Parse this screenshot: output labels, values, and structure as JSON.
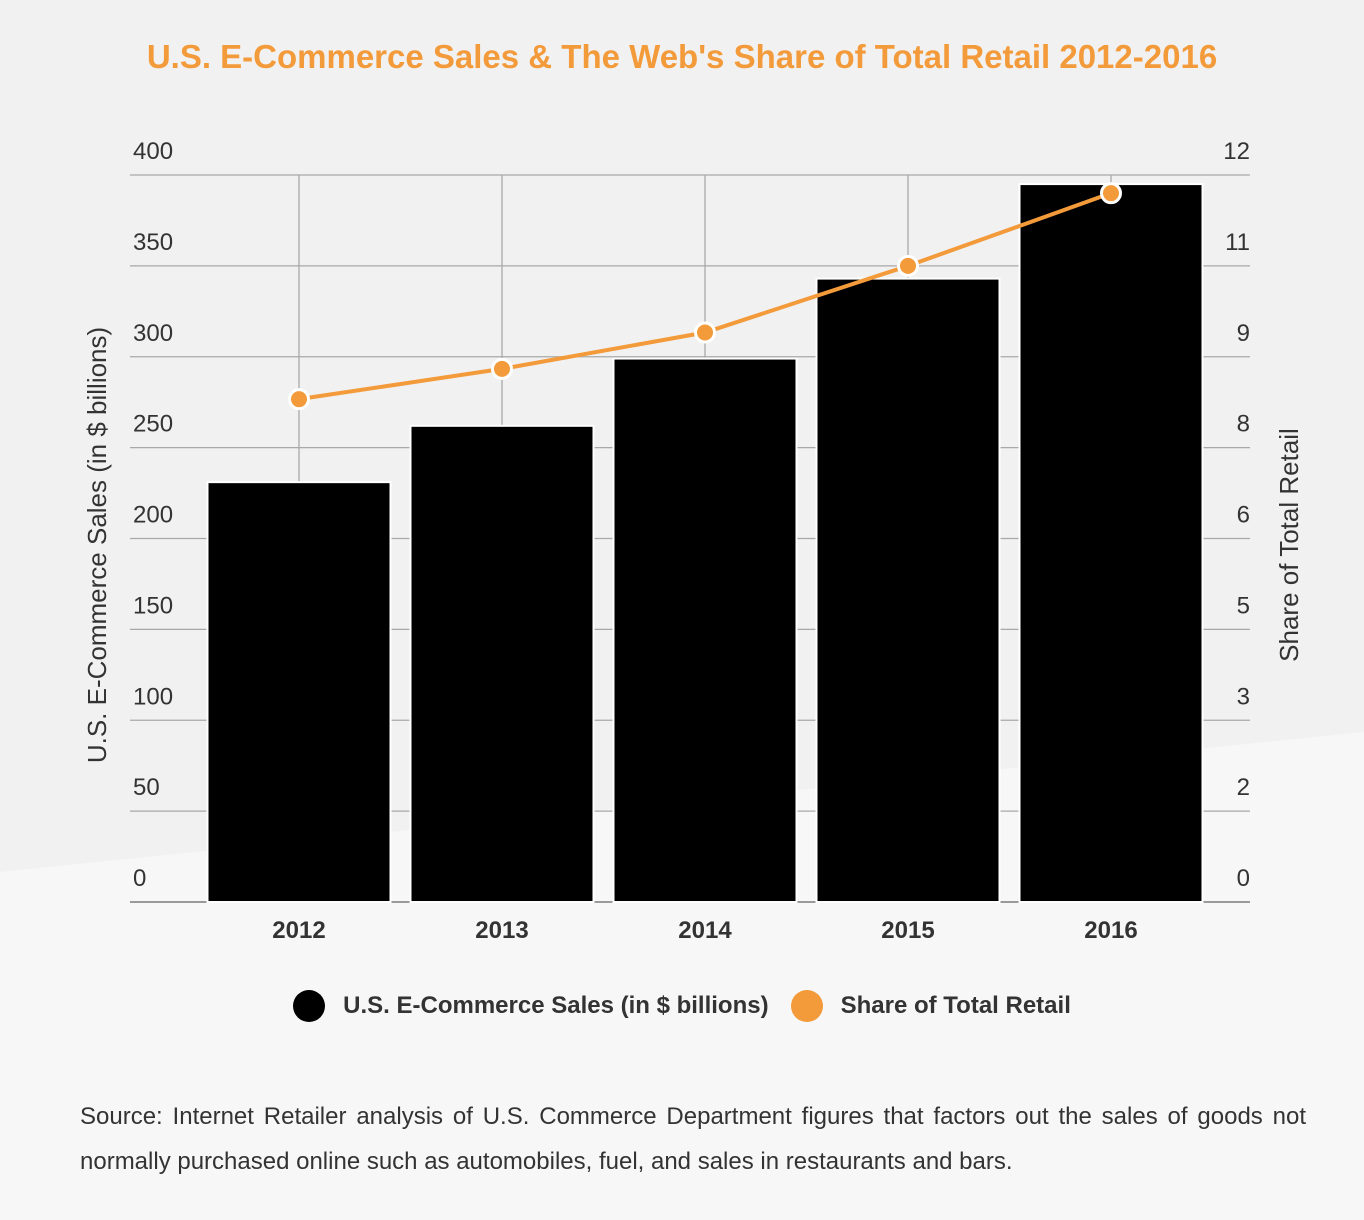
{
  "chart_data": {
    "type": "bar",
    "title": "U.S. E-Commerce Sales & The Web's Share of Total Retail 2012-2016",
    "categories": [
      "2012",
      "2013",
      "2014",
      "2015",
      "2016"
    ],
    "series": [
      {
        "name": "U.S. E-Commerce Sales (in $ billions)",
        "type": "bar",
        "axis": "left",
        "color": "#000000",
        "values": [
          231,
          262,
          299,
          343,
          395
        ]
      },
      {
        "name": "Share of Total Retail",
        "type": "line",
        "axis": "right",
        "color": "#f39a3a",
        "values": [
          8.3,
          8.8,
          9.4,
          10.5,
          11.7
        ]
      }
    ],
    "ylabel": "U.S. E-Commerce Sales (in $ billions)",
    "ylim": [
      0,
      400
    ],
    "y_ticks": [
      "0",
      "50",
      "100",
      "150",
      "200",
      "250",
      "300",
      "350",
      "400"
    ],
    "y2label": "Share of Total Retail",
    "y2lim": [
      0,
      12
    ],
    "y2_ticks": [
      "0",
      "2",
      "3",
      "5",
      "6",
      "8",
      "9",
      "11",
      "12"
    ],
    "grid": true,
    "legend_position": "bottom",
    "source": "Source: Internet Retailer analysis of U.S. Commerce Department figures that factors out the sales of goods not normally purchased online such as automobiles, fuel, and sales in restaurants and bars."
  }
}
